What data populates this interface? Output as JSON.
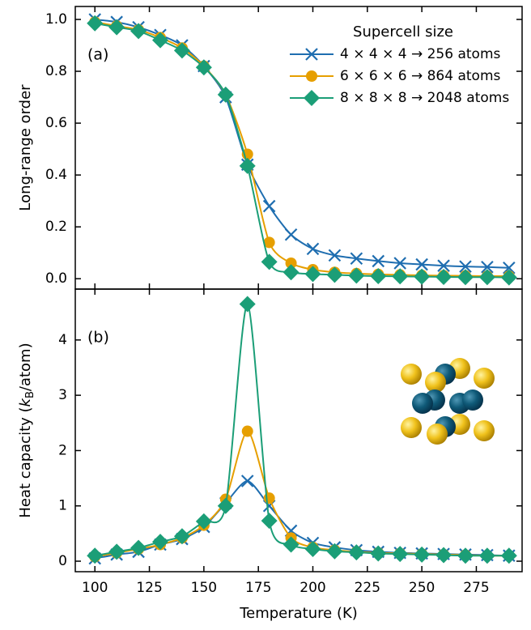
{
  "chart_data": [
    {
      "type": "line",
      "panel_label": "(a)",
      "ylabel": "Long-range order",
      "legend_title": "Supercell size",
      "legend": "upper right",
      "x": [
        100,
        110,
        120,
        130,
        140,
        150,
        160,
        170,
        180,
        190,
        200,
        210,
        220,
        230,
        240,
        250,
        260,
        270,
        280,
        290
      ],
      "xlim": [
        91,
        296
      ],
      "xticks": [
        100,
        125,
        150,
        175,
        200,
        225,
        250,
        275
      ],
      "ylim": [
        -0.04,
        1.05
      ],
      "yticks": [
        {
          "value": 0,
          "label": "0.0"
        },
        0.2,
        0.4,
        0.6,
        0.8,
        {
          "value": 1,
          "label": "1.0"
        }
      ],
      "series": [
        {
          "name": "4 × 4 × 4 → 256 atoms",
          "color": "#1f6eb0",
          "marker": "x",
          "values": [
            1.0,
            0.99,
            0.97,
            0.94,
            0.9,
            0.82,
            0.7,
            0.44,
            0.28,
            0.17,
            0.115,
            0.09,
            0.078,
            0.068,
            0.06,
            0.055,
            0.05,
            0.047,
            0.045,
            0.042
          ]
        },
        {
          "name": "6 × 6 × 6 → 864 atoms",
          "color": "#e69f00",
          "marker": "circle",
          "values": [
            0.99,
            0.975,
            0.96,
            0.93,
            0.89,
            0.82,
            0.71,
            0.48,
            0.14,
            0.06,
            0.035,
            0.025,
            0.02,
            0.017,
            0.015,
            0.013,
            0.012,
            0.011,
            0.01,
            0.01
          ]
        },
        {
          "name": "8 × 8 × 8 → 2048 atoms",
          "color": "#1b9e77",
          "marker": "diamond",
          "values": [
            0.985,
            0.97,
            0.955,
            0.92,
            0.88,
            0.815,
            0.71,
            0.435,
            0.065,
            0.025,
            0.018,
            0.015,
            0.012,
            0.01,
            0.009,
            0.008,
            0.007,
            0.006,
            0.006,
            0.005
          ]
        }
      ]
    },
    {
      "type": "line",
      "panel_label": "(b)",
      "ylabel_parts": [
        "Heat capacity (",
        "k",
        "B",
        "/atom)"
      ],
      "xlabel": "Temperature (K)",
      "x": [
        100,
        110,
        120,
        130,
        140,
        150,
        160,
        170,
        180,
        190,
        200,
        210,
        220,
        230,
        240,
        250,
        260,
        270,
        280,
        290
      ],
      "xlim": [
        91,
        296
      ],
      "xticks": [
        100,
        125,
        150,
        175,
        200,
        225,
        250,
        275
      ],
      "ylim": [
        -0.19,
        4.92
      ],
      "yticks": [
        0,
        1,
        2,
        3,
        4
      ],
      "series": [
        {
          "color": "#1f6eb0",
          "marker": "x",
          "values": [
            0.05,
            0.12,
            0.17,
            0.3,
            0.4,
            0.62,
            1.05,
            1.45,
            1.0,
            0.55,
            0.33,
            0.25,
            0.2,
            0.17,
            0.15,
            0.14,
            0.13,
            0.12,
            0.11,
            0.1
          ]
        },
        {
          "color": "#e69f00",
          "marker": "circle",
          "values": [
            0.08,
            0.15,
            0.22,
            0.3,
            0.42,
            0.65,
            1.12,
            2.35,
            1.14,
            0.42,
            0.25,
            0.2,
            0.17,
            0.15,
            0.14,
            0.13,
            0.12,
            0.11,
            0.1,
            0.1
          ]
        },
        {
          "color": "#1b9e77",
          "marker": "diamond",
          "values": [
            0.1,
            0.17,
            0.24,
            0.35,
            0.45,
            0.72,
            1.0,
            4.65,
            0.73,
            0.3,
            0.22,
            0.18,
            0.16,
            0.14,
            0.13,
            0.12,
            0.11,
            0.1,
            0.1,
            0.1
          ]
        }
      ]
    }
  ]
}
